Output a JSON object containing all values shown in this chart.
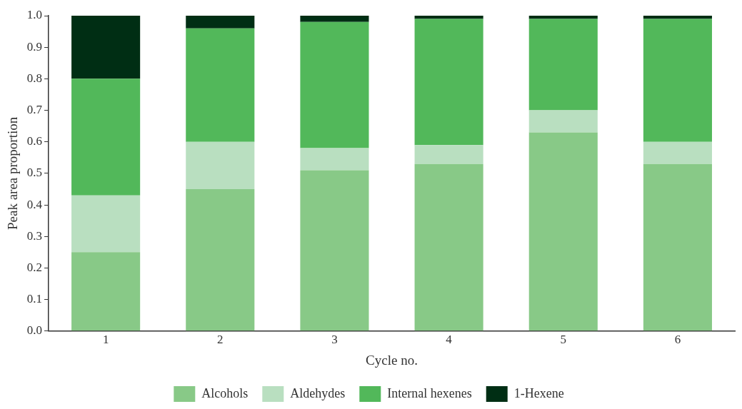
{
  "chart_data": {
    "type": "bar",
    "stacked": true,
    "xlabel": "Cycle no.",
    "ylabel": "Peak area proportion",
    "categories": [
      "1",
      "2",
      "3",
      "4",
      "5",
      "6"
    ],
    "series": [
      {
        "name": "Alcohols",
        "color": "#88c987",
        "values": [
          0.25,
          0.45,
          0.51,
          0.53,
          0.63,
          0.53
        ]
      },
      {
        "name": "Aldehydes",
        "color": "#b9dfc0",
        "values": [
          0.18,
          0.15,
          0.07,
          0.06,
          0.07,
          0.07
        ]
      },
      {
        "name": "Internal hexenes",
        "color": "#52b85a",
        "values": [
          0.37,
          0.36,
          0.4,
          0.4,
          0.29,
          0.39
        ]
      },
      {
        "name": "1-Hexene",
        "color": "#002e14",
        "values": [
          0.2,
          0.04,
          0.02,
          0.01,
          0.01,
          0.01
        ]
      }
    ],
    "ylim": [
      0,
      1
    ],
    "yticks": [
      {
        "value": 0,
        "label": "0.0"
      },
      {
        "value": 0.1,
        "label": "0.1"
      },
      {
        "value": 0.2,
        "label": "0.2"
      },
      {
        "value": 0.3,
        "label": "0.3"
      },
      {
        "value": 0.4,
        "label": "0.4"
      },
      {
        "value": 0.5,
        "label": "0.5"
      },
      {
        "value": 0.6,
        "label": "0.6"
      },
      {
        "value": 0.7,
        "label": "0.7"
      },
      {
        "value": 0.8,
        "label": "0.8"
      },
      {
        "value": 0.9,
        "label": "0.9"
      },
      {
        "value": 1,
        "label": "1.0"
      }
    ],
    "grid": false,
    "legend": "bottom"
  }
}
